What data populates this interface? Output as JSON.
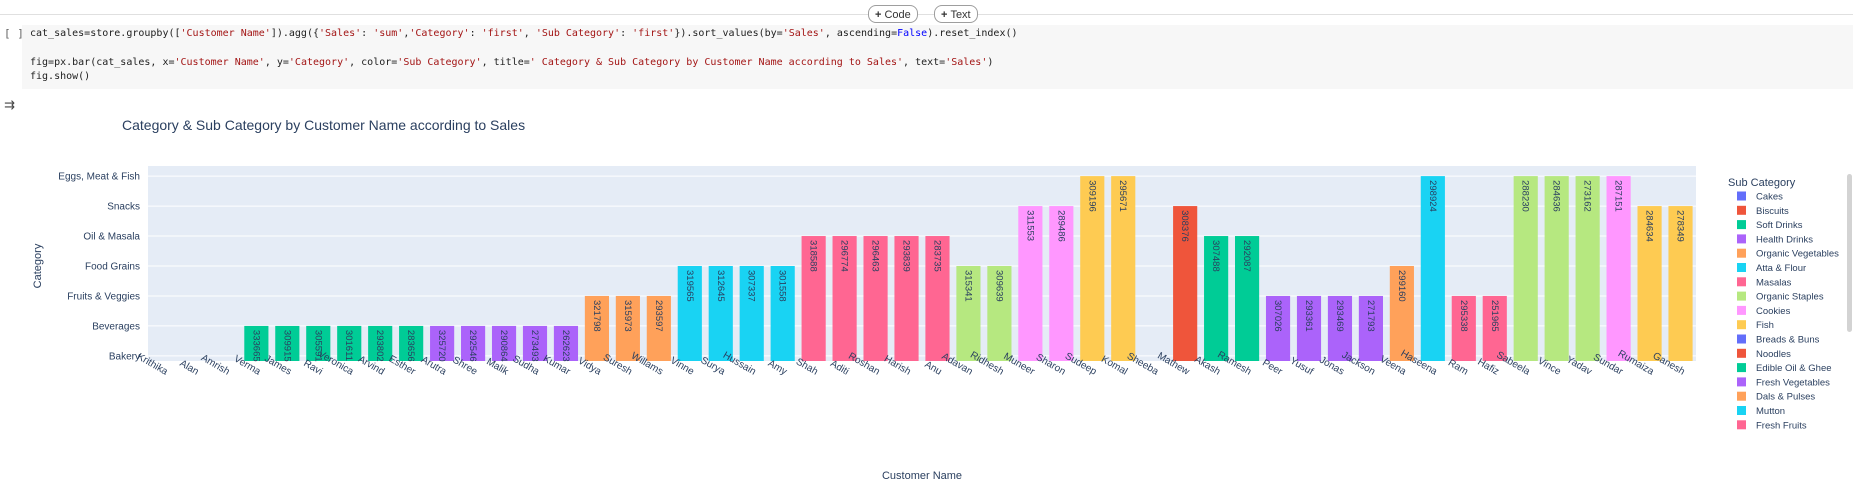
{
  "toolbar": {
    "code_label": "Code",
    "text_label": "Text"
  },
  "cell": {
    "bracket": "[ ]",
    "lines": [
      [
        [
          "cat_sales=store.groupby([",
          ""
        ],
        [
          "'Customer Name'",
          "str"
        ],
        [
          "]).agg({",
          ""
        ],
        [
          "'Sales'",
          "str"
        ],
        [
          ": ",
          ""
        ],
        [
          "'sum'",
          "str"
        ],
        [
          ",",
          ""
        ],
        [
          "'Category'",
          "str"
        ],
        [
          ": ",
          ""
        ],
        [
          "'first'",
          "str"
        ],
        [
          ", ",
          ""
        ],
        [
          "'Sub Category'",
          "str"
        ],
        [
          ": ",
          ""
        ],
        [
          "'first'",
          "str"
        ],
        [
          "}).sort_values(by=",
          ""
        ],
        [
          "'Sales'",
          "str"
        ],
        [
          ", ascending=",
          ""
        ],
        [
          "False",
          "kw"
        ],
        [
          ").reset_index()",
          ""
        ]
      ],
      [],
      [
        [
          "fig=px.bar(cat_sales, x=",
          ""
        ],
        [
          "'Customer Name'",
          "str"
        ],
        [
          ", y=",
          ""
        ],
        [
          "'Category'",
          "str"
        ],
        [
          ", color=",
          ""
        ],
        [
          "'Sub Category'",
          "str"
        ],
        [
          ", title=",
          ""
        ],
        [
          "' Category & Sub Category by Customer Name according to Sales'",
          "str"
        ],
        [
          ", text=",
          ""
        ],
        [
          "'Sales'",
          "str"
        ],
        [
          ")",
          ""
        ]
      ],
      [
        [
          "fig.show()",
          ""
        ]
      ]
    ]
  },
  "output": {
    "icon": "output-toggle-icon"
  },
  "chart_data": {
    "type": "bar",
    "title": "Category & Sub Category by Customer Name according to Sales",
    "xlabel": "Customer Name",
    "ylabel": "Category",
    "legend_title": "Sub Category",
    "legend_position": "right",
    "grid": true,
    "categories_y": [
      "Bakery",
      "Beverages",
      "Fruits & Veggies",
      "Food Grains",
      "Oil & Masala",
      "Snacks",
      "Eggs, Meat & Fish"
    ],
    "x": [
      "Krithika",
      "Alan",
      "Amrish",
      "Verma",
      "James",
      "Ravi",
      "Veronica",
      "Arvind",
      "Esther",
      "Arutra",
      "Shree",
      "Malik",
      "Sudha",
      "Kumar",
      "Vidya",
      "Suresh",
      "Willams",
      "Vinne",
      "Surya",
      "Hussain",
      "Amy",
      "Shah",
      "Aditi",
      "Roshan",
      "Harish",
      "Anu",
      "Adavan",
      "Ridhesh",
      "Muneer",
      "Sharon",
      "Sudeep",
      "Komal",
      "Sheeba",
      "Mathew",
      "Akash",
      "Ramesh",
      "Peer",
      "Yusuf",
      "Jonas",
      "Jackson",
      "Veena",
      "Haseena",
      "Ram",
      "Hafiz",
      "Sabeela",
      "Vince",
      "Yadav",
      "Sundar",
      "Rumaiza",
      "Ganesh"
    ],
    "points": [
      {
        "x": "Krithika",
        "y": "Bakery",
        "sub": "Cakes",
        "text": ""
      },
      {
        "x": "Alan",
        "y": "Bakery",
        "sub": "Biscuits",
        "text": ""
      },
      {
        "x": "Amrish",
        "y": "Bakery",
        "sub": "Breads & Buns",
        "text": ""
      },
      {
        "x": "Verma",
        "y": "Beverages",
        "sub": "Soft Drinks",
        "text": "333665"
      },
      {
        "x": "James",
        "y": "Beverages",
        "sub": "Soft Drinks",
        "text": "309915"
      },
      {
        "x": "Ravi",
        "y": "Beverages",
        "sub": "Soft Drinks",
        "text": "305591"
      },
      {
        "x": "Veronica",
        "y": "Beverages",
        "sub": "Soft Drinks",
        "text": "301611"
      },
      {
        "x": "Arvind",
        "y": "Beverages",
        "sub": "Soft Drinks",
        "text": "293802"
      },
      {
        "x": "Esther",
        "y": "Beverages",
        "sub": "Soft Drinks",
        "text": "283656"
      },
      {
        "x": "Arutra",
        "y": "Beverages",
        "sub": "Health Drinks",
        "text": "325720"
      },
      {
        "x": "Shree",
        "y": "Beverages",
        "sub": "Health Drinks",
        "text": "292546"
      },
      {
        "x": "Malik",
        "y": "Beverages",
        "sub": "Health Drinks",
        "text": "290864"
      },
      {
        "x": "Sudha",
        "y": "Beverages",
        "sub": "Health Drinks",
        "text": "273493"
      },
      {
        "x": "Kumar",
        "y": "Beverages",
        "sub": "Health Drinks",
        "text": "262623"
      },
      {
        "x": "Vidya",
        "y": "Fruits & Veggies",
        "sub": "Dals & Pulses",
        "text": "321798"
      },
      {
        "x": "Suresh",
        "y": "Fruits & Veggies",
        "sub": "Dals & Pulses",
        "text": "315973"
      },
      {
        "x": "Willams",
        "y": "Fruits & Veggies",
        "sub": "Dals & Pulses",
        "text": "293597"
      },
      {
        "x": "Vinne",
        "y": "Food Grains",
        "sub": "Atta & Flour",
        "text": "319565"
      },
      {
        "x": "Surya",
        "y": "Food Grains",
        "sub": "Atta & Flour",
        "text": "312645"
      },
      {
        "x": "Hussain",
        "y": "Food Grains",
        "sub": "Atta & Flour",
        "text": "307337"
      },
      {
        "x": "Amy",
        "y": "Food Grains",
        "sub": "Atta & Flour",
        "text": "301558"
      },
      {
        "x": "Shah",
        "y": "Oil & Masala",
        "sub": "Masalas",
        "text": "318588"
      },
      {
        "x": "Aditi",
        "y": "Oil & Masala",
        "sub": "Masalas",
        "text": "296774"
      },
      {
        "x": "Roshan",
        "y": "Oil & Masala",
        "sub": "Masalas",
        "text": "296463"
      },
      {
        "x": "Harish",
        "y": "Oil & Masala",
        "sub": "Masalas",
        "text": "293839"
      },
      {
        "x": "Anu",
        "y": "Oil & Masala",
        "sub": "Masalas",
        "text": "283735"
      },
      {
        "x": "Adavan",
        "y": "Food Grains",
        "sub": "Organic Staples",
        "text": "315341"
      },
      {
        "x": "Ridhesh",
        "y": "Food Grains",
        "sub": "Organic Staples",
        "text": "309639"
      },
      {
        "x": "Muneer",
        "y": "Snacks",
        "sub": "Cookies",
        "text": "311553"
      },
      {
        "x": "Sharon",
        "y": "Snacks",
        "sub": "Cookies",
        "text": "289486"
      },
      {
        "x": "Sudeep",
        "y": "Eggs, Meat & Fish",
        "sub": "Fish",
        "text": "309196"
      },
      {
        "x": "Komal",
        "y": "Eggs, Meat & Fish",
        "sub": "Fish",
        "text": "295671"
      },
      {
        "x": "Sheeba",
        "y": "Bakery",
        "sub": "Breads & Buns",
        "text": ""
      },
      {
        "x": "Mathew",
        "y": "Snacks",
        "sub": "Noodles",
        "text": "308376"
      },
      {
        "x": "Akash",
        "y": "Oil & Masala",
        "sub": "Edible Oil & Ghee",
        "text": "307488"
      },
      {
        "x": "Ramesh",
        "y": "Oil & Masala",
        "sub": "Edible Oil & Ghee",
        "text": "292087"
      },
      {
        "x": "Peer",
        "y": "Fruits & Veggies",
        "sub": "Fresh Vegetables",
        "text": "307026"
      },
      {
        "x": "Yusuf",
        "y": "Fruits & Veggies",
        "sub": "Fresh Vegetables",
        "text": "293361"
      },
      {
        "x": "Jonas",
        "y": "Fruits & Veggies",
        "sub": "Fresh Vegetables",
        "text": "293469"
      },
      {
        "x": "Jackson",
        "y": "Fruits & Veggies",
        "sub": "Fresh Vegetables",
        "text": "271793"
      },
      {
        "x": "Veena",
        "y": "Food Grains",
        "sub": "Dals & Pulses",
        "text": "299160"
      },
      {
        "x": "Haseena",
        "y": "Eggs, Meat & Fish",
        "sub": "Mutton",
        "text": "298924"
      },
      {
        "x": "Ram",
        "y": "Fruits & Veggies",
        "sub": "Fresh Fruits",
        "text": "295338"
      },
      {
        "x": "Hafiz",
        "y": "Fruits & Veggies",
        "sub": "Fresh Fruits",
        "text": "251965"
      },
      {
        "x": "Sabeela",
        "y": "Eggs, Meat & Fish",
        "sub": "Organic Staples",
        "text": "288230"
      },
      {
        "x": "Vince",
        "y": "Eggs, Meat & Fish",
        "sub": "Organic Staples",
        "text": "284636"
      },
      {
        "x": "Yadav",
        "y": "Eggs, Meat & Fish",
        "sub": "Organic Staples",
        "text": "273162"
      },
      {
        "x": "Sundar",
        "y": "Eggs, Meat & Fish",
        "sub": "Cookies",
        "text": "287151"
      },
      {
        "x": "Rumaiza",
        "y": "Snacks",
        "sub": "Fish",
        "text": "284634"
      },
      {
        "x": "Ganesh",
        "y": "Snacks",
        "sub": "Fish",
        "text": "278349"
      }
    ],
    "legend": [
      {
        "name": "Cakes",
        "color": "#636EFA"
      },
      {
        "name": "Biscuits",
        "color": "#EF553B"
      },
      {
        "name": "Soft Drinks",
        "color": "#00CC96"
      },
      {
        "name": "Health Drinks",
        "color": "#AB63FA"
      },
      {
        "name": "Organic Vegetables",
        "color": "#FFA15A"
      },
      {
        "name": "Atta & Flour",
        "color": "#19D3F3"
      },
      {
        "name": "Masalas",
        "color": "#FF6692"
      },
      {
        "name": "Organic Staples",
        "color": "#B6E880"
      },
      {
        "name": "Cookies",
        "color": "#FF97FF"
      },
      {
        "name": "Fish",
        "color": "#FECB52"
      },
      {
        "name": "Breads & Buns",
        "color": "#636EFA"
      },
      {
        "name": "Noodles",
        "color": "#EF553B"
      },
      {
        "name": "Edible Oil & Ghee",
        "color": "#00CC96"
      },
      {
        "name": "Fresh Vegetables",
        "color": "#AB63FA"
      },
      {
        "name": "Dals & Pulses",
        "color": "#FFA15A"
      },
      {
        "name": "Mutton",
        "color": "#19D3F3"
      },
      {
        "name": "Fresh Fruits",
        "color": "#FF6692"
      }
    ]
  }
}
